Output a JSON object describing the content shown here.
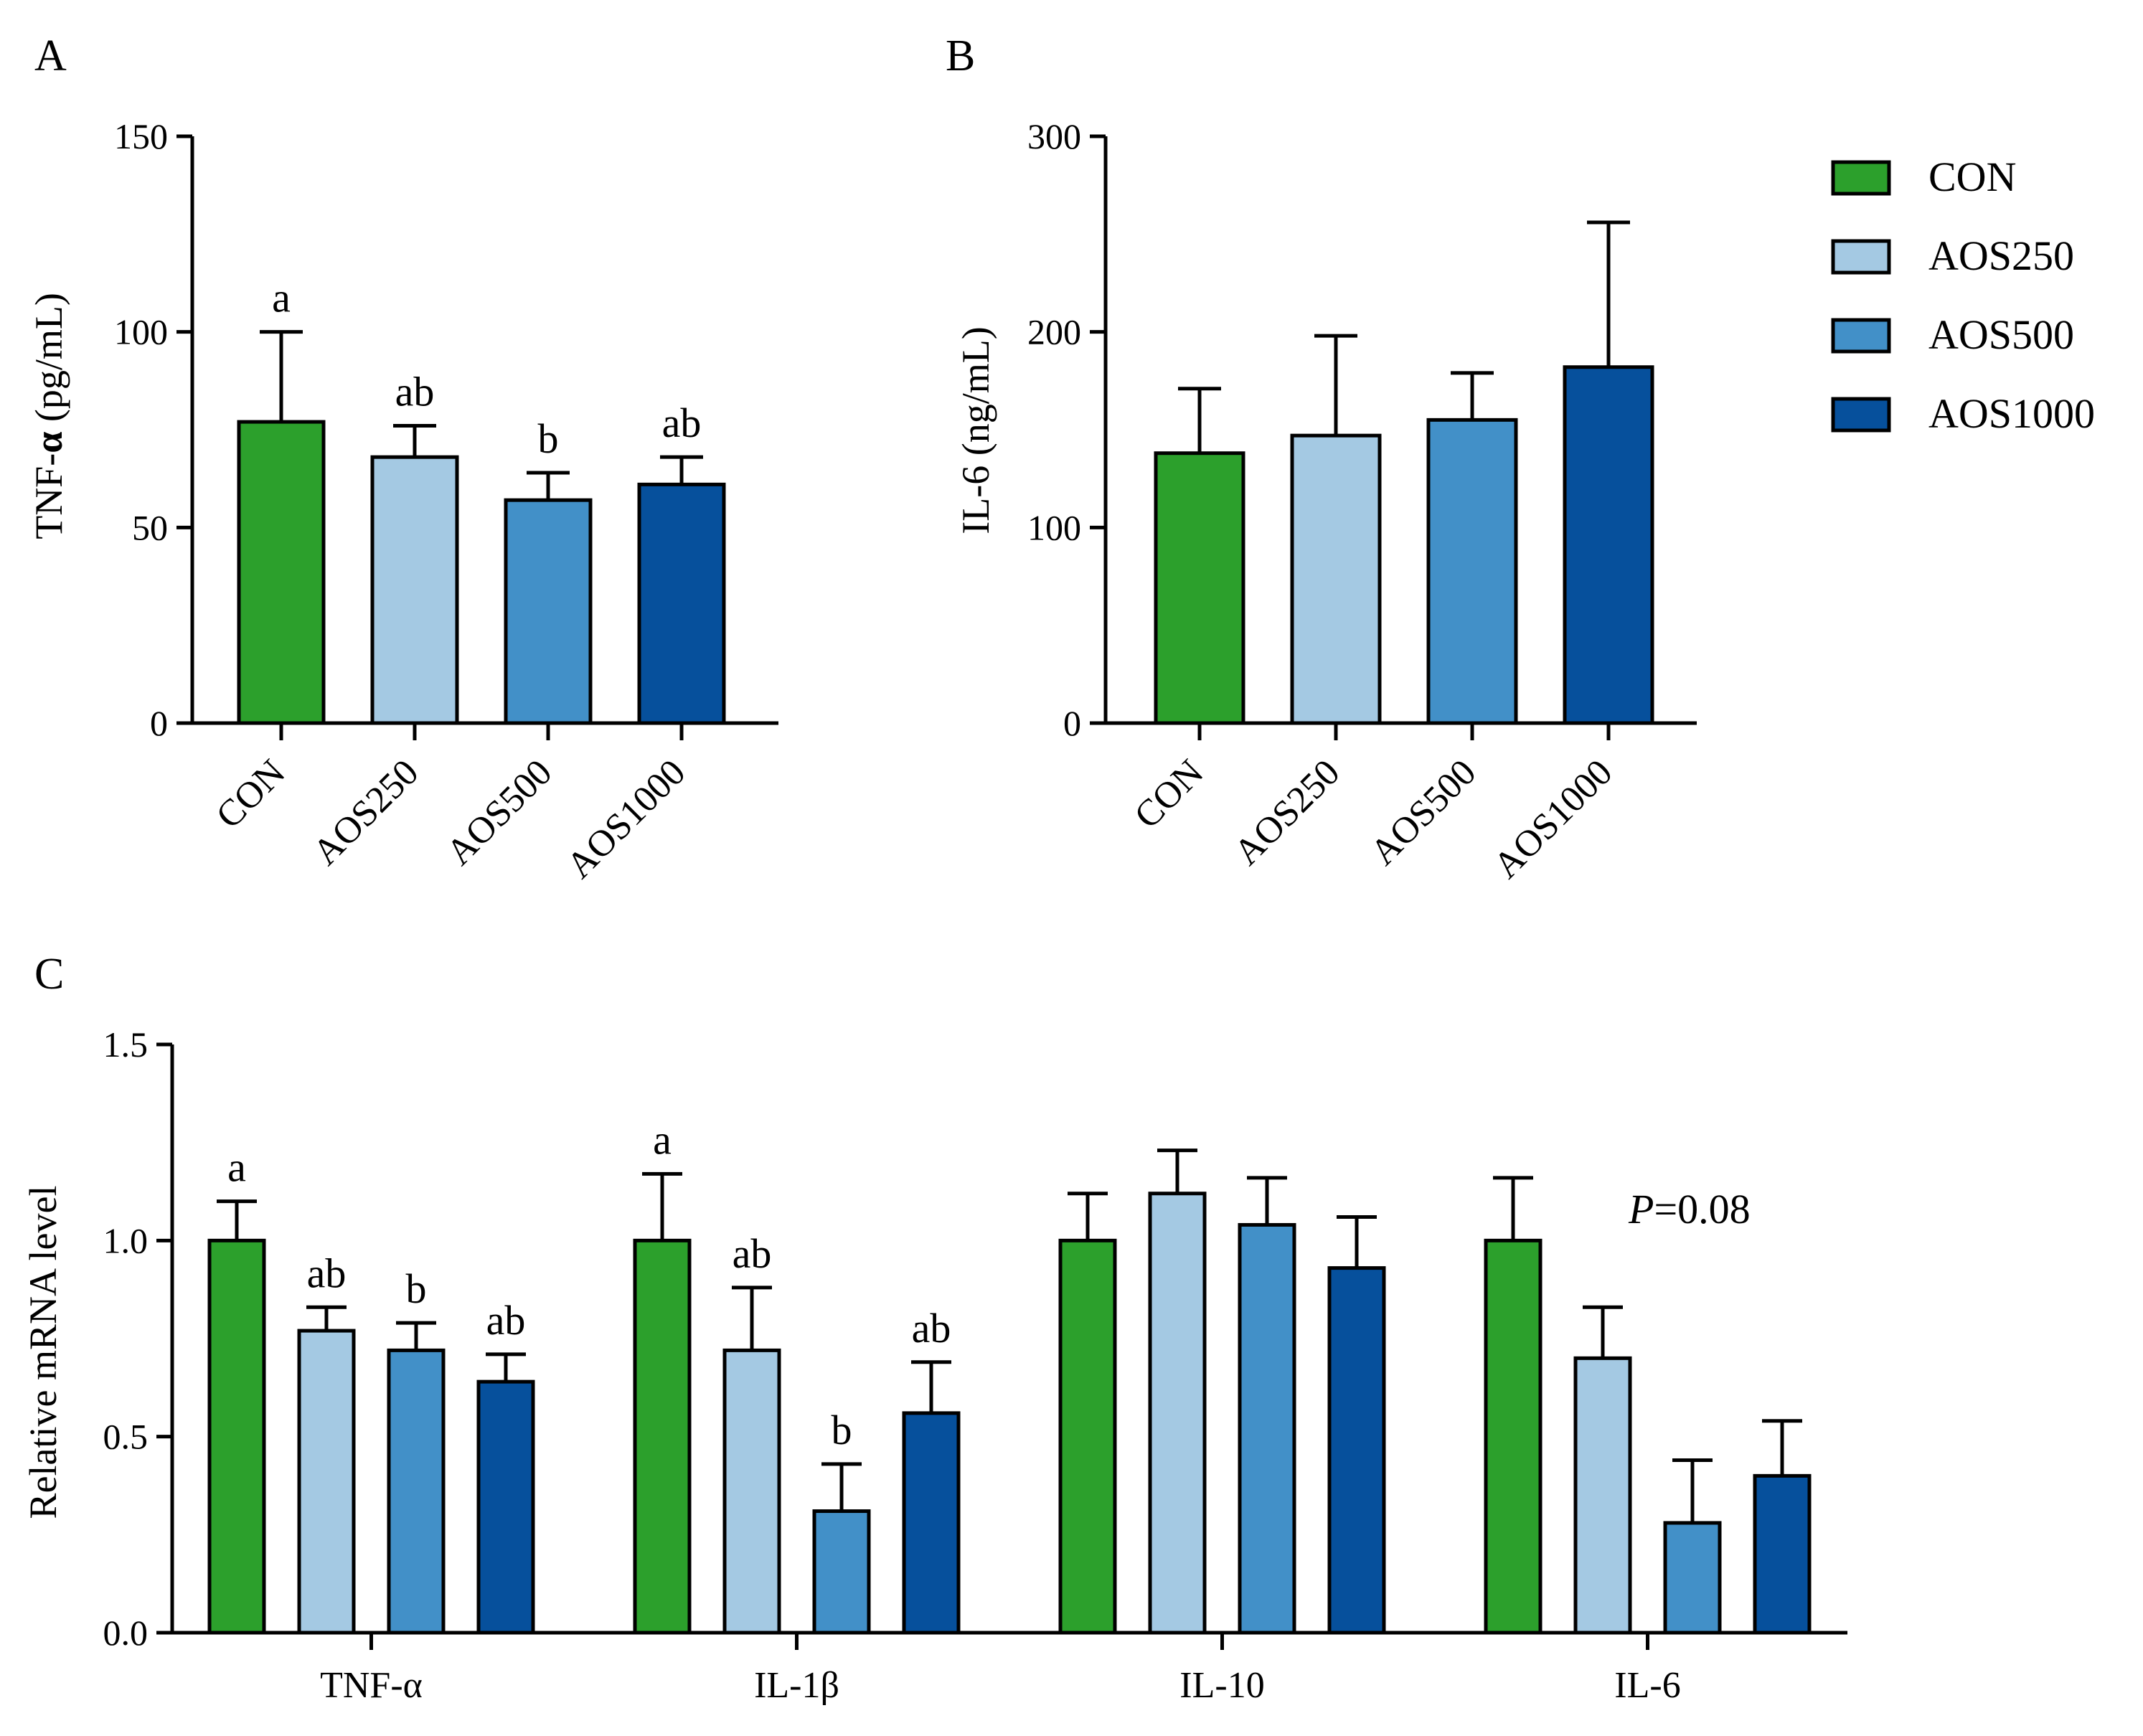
{
  "colors": {
    "CON": "#2ca02c",
    "AOS250": "#a4c9e3",
    "AOS500": "#4290c8",
    "AOS1000": "#06509c"
  },
  "legend": [
    "CON",
    "AOS250",
    "AOS500",
    "AOS1000"
  ],
  "chart_data": [
    {
      "panel": "A",
      "type": "bar",
      "ylabel_prefix": "TNF-",
      "ylabel_symbol": "α",
      "ylabel_unit": " (pg/mL)",
      "ylim": [
        0,
        150
      ],
      "yticks": [
        "0",
        "50",
        "100",
        "150"
      ],
      "categories": [
        "CON",
        "AOS250",
        "AOS500",
        "AOS1000"
      ],
      "values": [
        77,
        68,
        57,
        61
      ],
      "errors": [
        23,
        8,
        7,
        7
      ],
      "labels": [
        "a",
        "ab",
        "b",
        "ab"
      ]
    },
    {
      "panel": "B",
      "type": "bar",
      "ylabel": "IL-6 (ng/mL)",
      "ylim": [
        0,
        300
      ],
      "yticks": [
        "0",
        "100",
        "200",
        "300"
      ],
      "categories": [
        "CON",
        "AOS250",
        "AOS500",
        "AOS1000"
      ],
      "values": [
        138,
        147,
        155,
        182
      ],
      "errors": [
        33,
        51,
        24,
        74
      ]
    },
    {
      "panel": "C",
      "type": "bar",
      "ylabel": "Relative mRNA level",
      "ylim": [
        0,
        1.5
      ],
      "yticks": [
        "0.0",
        "0.5",
        "1.0",
        "1.5"
      ],
      "categories": [
        "TNF-α",
        "IL-1β",
        "IL-10",
        "IL-6"
      ],
      "series": [
        {
          "name": "CON",
          "values": [
            1.0,
            1.0,
            1.0,
            1.0
          ],
          "errors": [
            0.1,
            0.17,
            0.12,
            0.16
          ]
        },
        {
          "name": "AOS250",
          "values": [
            0.77,
            0.72,
            1.12,
            0.7
          ],
          "errors": [
            0.06,
            0.16,
            0.11,
            0.13
          ]
        },
        {
          "name": "AOS500",
          "values": [
            0.72,
            0.31,
            1.04,
            0.28
          ],
          "errors": [
            0.07,
            0.12,
            0.12,
            0.16
          ]
        },
        {
          "name": "AOS1000",
          "values": [
            0.64,
            0.56,
            0.93,
            0.4
          ],
          "errors": [
            0.07,
            0.13,
            0.13,
            0.14
          ]
        }
      ],
      "labels": [
        [
          "a",
          "ab",
          "b",
          "ab"
        ],
        [
          "a",
          "ab",
          "b",
          "ab"
        ],
        [
          "",
          "",
          "",
          ""
        ],
        [
          "",
          "",
          "",
          ""
        ]
      ],
      "annotation": {
        "p_italic": "P",
        "p_value": "=0.08"
      }
    }
  ]
}
